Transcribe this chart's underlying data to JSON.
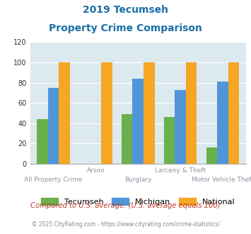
{
  "title_line1": "2019 Tecumseh",
  "title_line2": "Property Crime Comparison",
  "cat_labels_row1": [
    "",
    "Arson",
    "",
    "Larceny & Theft",
    ""
  ],
  "cat_labels_row2": [
    "All Property Crime",
    "",
    "Burglary",
    "",
    "Motor Vehicle Theft"
  ],
  "tecumseh": [
    44,
    0,
    49,
    46,
    16
  ],
  "michigan": [
    75,
    0,
    84,
    73,
    81
  ],
  "national": [
    100,
    100,
    100,
    100,
    100
  ],
  "color_tecumseh": "#6ab04c",
  "color_michigan": "#4f96d8",
  "color_national": "#f5a623",
  "ylim": [
    0,
    120
  ],
  "yticks": [
    0,
    20,
    40,
    60,
    80,
    100,
    120
  ],
  "bg_color": "#dce9ee",
  "title_color": "#1a6fa8",
  "xlabel_color": "#9b8ea0",
  "footnote1": "Compared to U.S. average. (U.S. average equals 100)",
  "footnote2": "© 2025 CityRating.com - https://www.cityrating.com/crime-statistics/",
  "footnote1_color": "#c0392b",
  "footnote2_color": "#888888"
}
